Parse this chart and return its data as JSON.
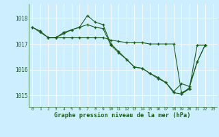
{
  "xlabel": "Graphe pression niveau de la mer (hPa)",
  "bg_color": "#cceeff",
  "grid_color": "#b0dde0",
  "line_color": "#1a5c1a",
  "ylim": [
    1014.55,
    1018.55
  ],
  "xlim": [
    -0.5,
    23.5
  ],
  "yticks": [
    1015,
    1016,
    1017,
    1018
  ],
  "xticks": [
    0,
    1,
    2,
    3,
    4,
    5,
    6,
    7,
    8,
    9,
    10,
    11,
    12,
    13,
    14,
    15,
    16,
    17,
    18,
    19,
    20,
    21,
    22,
    23
  ],
  "series": [
    {
      "x": [
        0,
        1,
        2,
        3,
        4,
        5,
        6,
        7,
        8,
        9,
        10,
        11,
        12,
        13,
        14,
        15,
        16,
        17,
        18,
        19,
        20,
        21,
        22
      ],
      "y": [
        1017.65,
        1017.5,
        1017.25,
        1017.25,
        1017.25,
        1017.25,
        1017.25,
        1017.25,
        1017.25,
        1017.25,
        1017.15,
        1017.1,
        1017.05,
        1017.05,
        1017.05,
        1017.0,
        1017.0,
        1017.0,
        1017.0,
        1015.1,
        1015.25,
        1016.95,
        1016.95
      ]
    },
    {
      "x": [
        0,
        1,
        2,
        3,
        4,
        5,
        6,
        7,
        8,
        9,
        10,
        11,
        12,
        13,
        14,
        15,
        16,
        17,
        18,
        19,
        20
      ],
      "y": [
        1017.65,
        1017.45,
        1017.25,
        1017.25,
        1017.4,
        1017.55,
        1017.65,
        1018.1,
        1017.85,
        1017.75,
        1017.0,
        1016.7,
        1016.4,
        1016.1,
        1016.05,
        1015.85,
        1015.7,
        1015.5,
        1015.1,
        1015.05,
        1015.25
      ]
    },
    {
      "x": [
        2,
        3,
        4,
        5,
        6,
        7,
        8,
        9,
        10,
        11,
        12,
        13,
        14,
        15,
        16,
        17,
        18,
        19,
        20,
        21,
        22
      ],
      "y": [
        1017.25,
        1017.25,
        1017.45,
        1017.55,
        1017.65,
        1017.75,
        1017.65,
        1017.6,
        1016.95,
        1016.65,
        1016.4,
        1016.1,
        1016.05,
        1015.85,
        1015.65,
        1015.5,
        1015.15,
        1015.45,
        1015.35,
        1016.3,
        1016.95
      ]
    },
    {
      "x": [
        19,
        20,
        21,
        22
      ],
      "y": [
        1015.05,
        1015.3,
        1016.3,
        1016.95
      ]
    }
  ]
}
